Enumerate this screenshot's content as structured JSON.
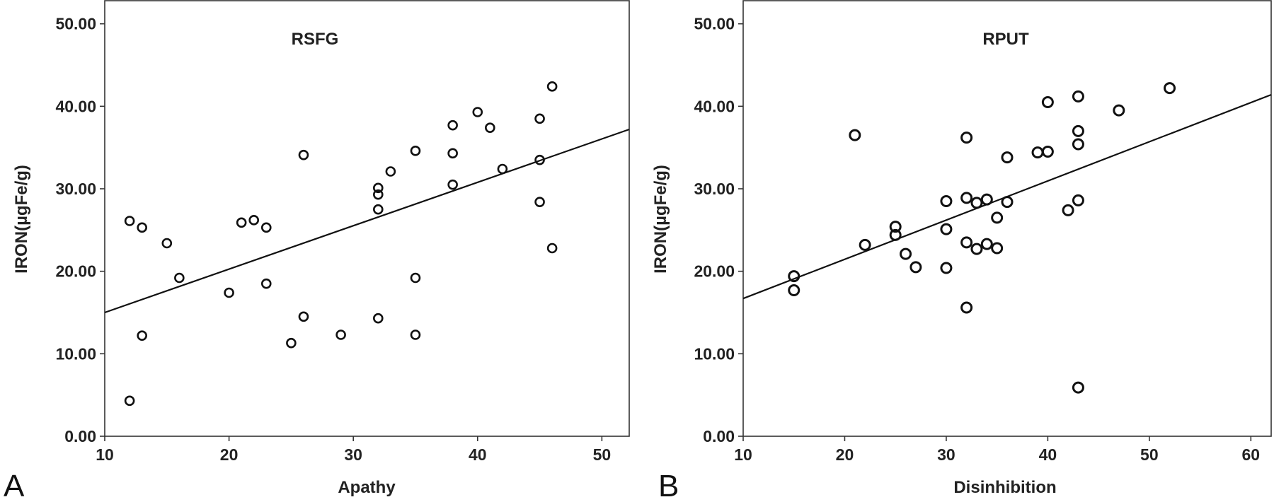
{
  "chart_data": [
    {
      "type": "scatter",
      "panel_letter": "A",
      "title": "RSFG",
      "xlabel": "Apathy",
      "ylabel": "IRON(µgFe/g)",
      "xlim": [
        10,
        52.2
      ],
      "ylim": [
        0,
        52.8
      ],
      "x_ticks": [
        "10",
        "20",
        "30",
        "40",
        "50"
      ],
      "y_ticks": [
        "0.00",
        "10.00",
        "20.00",
        "30.00",
        "40.00",
        "50.00"
      ],
      "grid": false,
      "fit_line": {
        "x": [
          10,
          52.2
        ],
        "y": [
          15.0,
          37.2
        ]
      },
      "series": [
        {
          "x": [
            12,
            12,
            13,
            13,
            15,
            16,
            20,
            21,
            22,
            23,
            23,
            25,
            26,
            26,
            29,
            32,
            32,
            32,
            32,
            33,
            35,
            35,
            35,
            38,
            38,
            38,
            40,
            41,
            42,
            45,
            45,
            45,
            46,
            46
          ],
          "y": [
            26.1,
            4.3,
            25.3,
            12.2,
            23.4,
            19.2,
            17.4,
            25.9,
            26.2,
            25.3,
            18.5,
            11.3,
            34.1,
            14.5,
            12.3,
            30.1,
            29.3,
            27.5,
            14.3,
            32.1,
            34.6,
            19.2,
            12.3,
            37.7,
            34.3,
            30.5,
            39.3,
            37.4,
            32.4,
            38.5,
            33.5,
            28.4,
            42.4,
            22.8
          ]
        }
      ]
    },
    {
      "type": "scatter",
      "panel_letter": "B",
      "title": "RPUT",
      "xlabel": "Disinhibition",
      "ylabel": "IRON(µgFe/g)",
      "xlim": [
        10,
        62
      ],
      "ylim": [
        0,
        52.8
      ],
      "x_ticks": [
        "10",
        "20",
        "30",
        "40",
        "50",
        "60"
      ],
      "y_ticks": [
        "0.00",
        "10.00",
        "20.00",
        "30.00",
        "40.00",
        "50.00"
      ],
      "grid": false,
      "fit_line": {
        "x": [
          10,
          62
        ],
        "y": [
          16.7,
          41.4
        ]
      },
      "series": [
        {
          "x": [
            15,
            15,
            21,
            22,
            25,
            25,
            26,
            27,
            30,
            30,
            30,
            32,
            32,
            32,
            32,
            33,
            33,
            34,
            34,
            35,
            35,
            36,
            36,
            39,
            40,
            40,
            42,
            43,
            43,
            43,
            43,
            43,
            47,
            52
          ],
          "y": [
            19.4,
            17.7,
            36.5,
            23.2,
            25.4,
            24.4,
            22.1,
            20.5,
            28.5,
            25.1,
            20.4,
            36.2,
            28.9,
            23.5,
            15.6,
            28.3,
            22.7,
            28.7,
            23.3,
            26.5,
            22.8,
            33.8,
            28.4,
            34.4,
            40.5,
            34.5,
            27.4,
            41.2,
            37.0,
            35.4,
            28.6,
            5.9,
            39.5,
            42.2
          ]
        }
      ]
    }
  ]
}
